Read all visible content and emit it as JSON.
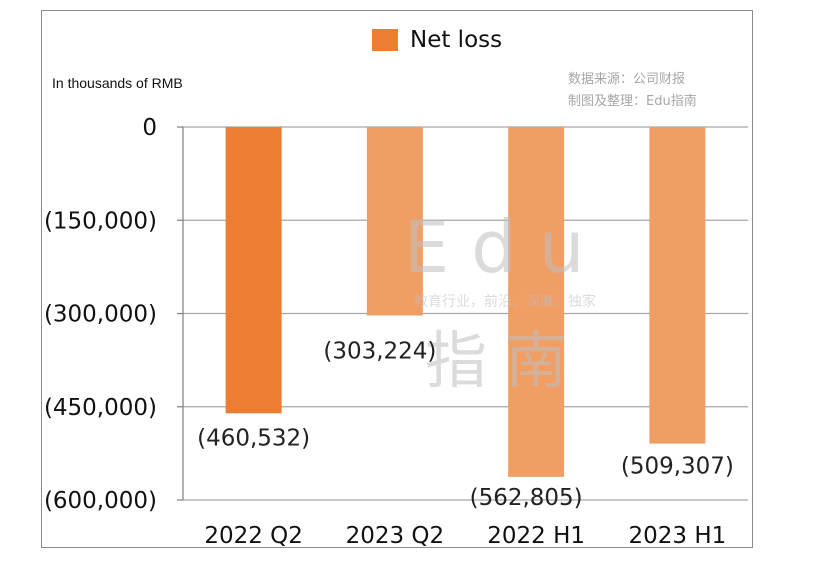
{
  "legend": {
    "label": "Net loss",
    "color": "#ed7d31"
  },
  "unit_note": "In thousands of RMB",
  "source": {
    "line1": "数据来源：公司财报",
    "line2": "制图及整理：Edu指南"
  },
  "watermark": {
    "word": "Edu",
    "tagline": "教育行业，前沿、深度、独家",
    "chars": "指南"
  },
  "chart_data": {
    "type": "bar",
    "categories": [
      "2022 Q2",
      "2023 Q2",
      "2022 H1",
      "2023 H1"
    ],
    "series": [
      {
        "name": "Net loss",
        "values": [
          -460532,
          -303224,
          -562805,
          -509307
        ]
      }
    ],
    "data_labels": [
      "(460,532)",
      "(303,224)",
      "(562,805)",
      "(509,307)"
    ],
    "colors": [
      "#ed7d31",
      "#f19e64",
      "#f19e64",
      "#f19e64"
    ],
    "ylim": [
      -600000,
      0
    ],
    "yticks": [
      0,
      -150000,
      -300000,
      -450000,
      -600000
    ],
    "ytick_labels": [
      "0",
      "(150,000)",
      "(300,000)",
      "(450,000)",
      "(600,000)"
    ],
    "grid": true
  }
}
